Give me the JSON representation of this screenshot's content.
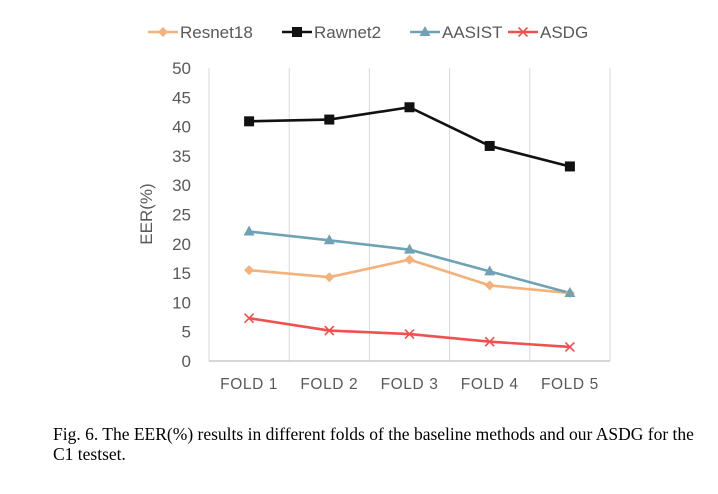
{
  "chart_data": {
    "type": "line",
    "categories": [
      "FOLD 1",
      "FOLD 2",
      "FOLD 3",
      "FOLD 4",
      "FOLD 5"
    ],
    "series": [
      {
        "name": "Resnet18",
        "color": "#F4B17A",
        "marker": "diamond",
        "values": [
          15.5,
          14.3,
          17.3,
          12.9,
          11.6
        ]
      },
      {
        "name": "Rawnet2",
        "color": "#111111",
        "marker": "square",
        "values": [
          40.9,
          41.2,
          43.3,
          36.7,
          33.2
        ]
      },
      {
        "name": "AASIST",
        "color": "#6FA2B5",
        "marker": "triangle",
        "values": [
          22.1,
          20.6,
          19.0,
          15.3,
          11.6
        ]
      },
      {
        "name": "ASDG",
        "color": "#F0504E",
        "marker": "x",
        "values": [
          7.3,
          5.2,
          4.6,
          3.3,
          2.4
        ]
      }
    ],
    "title": "",
    "xlabel": "",
    "ylabel": "EER(%)",
    "ylim": [
      0,
      50
    ],
    "yticks": [
      "0",
      "5",
      "10",
      "15",
      "20",
      "25",
      "30",
      "35",
      "40",
      "45",
      "50"
    ],
    "grid": "vertical",
    "legend": "top"
  },
  "caption": "Fig. 6.   The EER(%) results in different folds of the baseline methods and our ASDG for the C1 testset."
}
